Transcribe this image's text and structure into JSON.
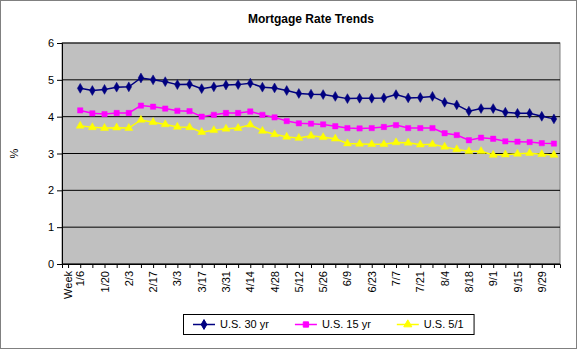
{
  "chart_data": {
    "type": "line",
    "title": "Mortgage Rate Trends",
    "y_label": "%",
    "categories": [
      "Week",
      "1/6",
      null,
      "1/20",
      null,
      "2/3",
      null,
      "2/17",
      null,
      "3/3",
      null,
      "3/17",
      null,
      "3/31",
      null,
      "4/14",
      null,
      "4/28",
      null,
      "5/12",
      null,
      "5/26",
      null,
      "6/9",
      null,
      "6/23",
      null,
      "7/7",
      null,
      "7/21",
      null,
      "8/4",
      null,
      "8/18",
      null,
      "9/1",
      null,
      "9/15",
      null,
      "9/29",
      null
    ],
    "series": [
      {
        "name": "U.S. 30 yr",
        "color": "#000080",
        "marker": "diamond",
        "values": [
          null,
          4.77,
          4.71,
          4.74,
          4.8,
          4.81,
          5.05,
          5.0,
          4.95,
          4.87,
          4.88,
          4.76,
          4.81,
          4.86,
          4.87,
          4.91,
          4.8,
          4.78,
          4.71,
          4.63,
          4.61,
          4.6,
          4.55,
          4.49,
          4.5,
          4.5,
          4.51,
          4.6,
          4.51,
          4.52,
          4.55,
          4.39,
          4.32,
          4.15,
          4.22,
          4.22,
          4.12,
          4.09,
          4.09,
          4.01,
          3.94
        ]
      },
      {
        "name": "U.S. 15 yr",
        "color": "#ff00ff",
        "marker": "square",
        "values": [
          null,
          4.17,
          4.09,
          4.07,
          4.1,
          4.1,
          4.3,
          4.27,
          4.22,
          4.16,
          4.15,
          4.0,
          4.05,
          4.1,
          4.1,
          4.14,
          4.05,
          3.98,
          3.88,
          3.82,
          3.81,
          3.79,
          3.74,
          3.69,
          3.68,
          3.69,
          3.72,
          3.77,
          3.69,
          3.69,
          3.69,
          3.55,
          3.5,
          3.36,
          3.43,
          3.4,
          3.33,
          3.32,
          3.31,
          3.28,
          3.27
        ]
      },
      {
        "name": "U.S. 5/1",
        "color": "#ffff00",
        "marker": "triangle",
        "values": [
          null,
          3.75,
          3.71,
          3.69,
          3.7,
          3.69,
          3.91,
          3.85,
          3.79,
          3.72,
          3.71,
          3.58,
          3.63,
          3.67,
          3.69,
          3.78,
          3.61,
          3.52,
          3.45,
          3.42,
          3.48,
          3.44,
          3.4,
          3.27,
          3.26,
          3.25,
          3.25,
          3.3,
          3.29,
          3.24,
          3.25,
          3.18,
          3.11,
          3.06,
          3.06,
          2.96,
          2.97,
          2.99,
          3.01,
          2.98,
          2.96
        ]
      }
    ],
    "ylim": [
      0,
      6
    ],
    "yticks": [
      0,
      1,
      2,
      3,
      4,
      5,
      6
    ],
    "grid": true,
    "legend": "bottom"
  }
}
